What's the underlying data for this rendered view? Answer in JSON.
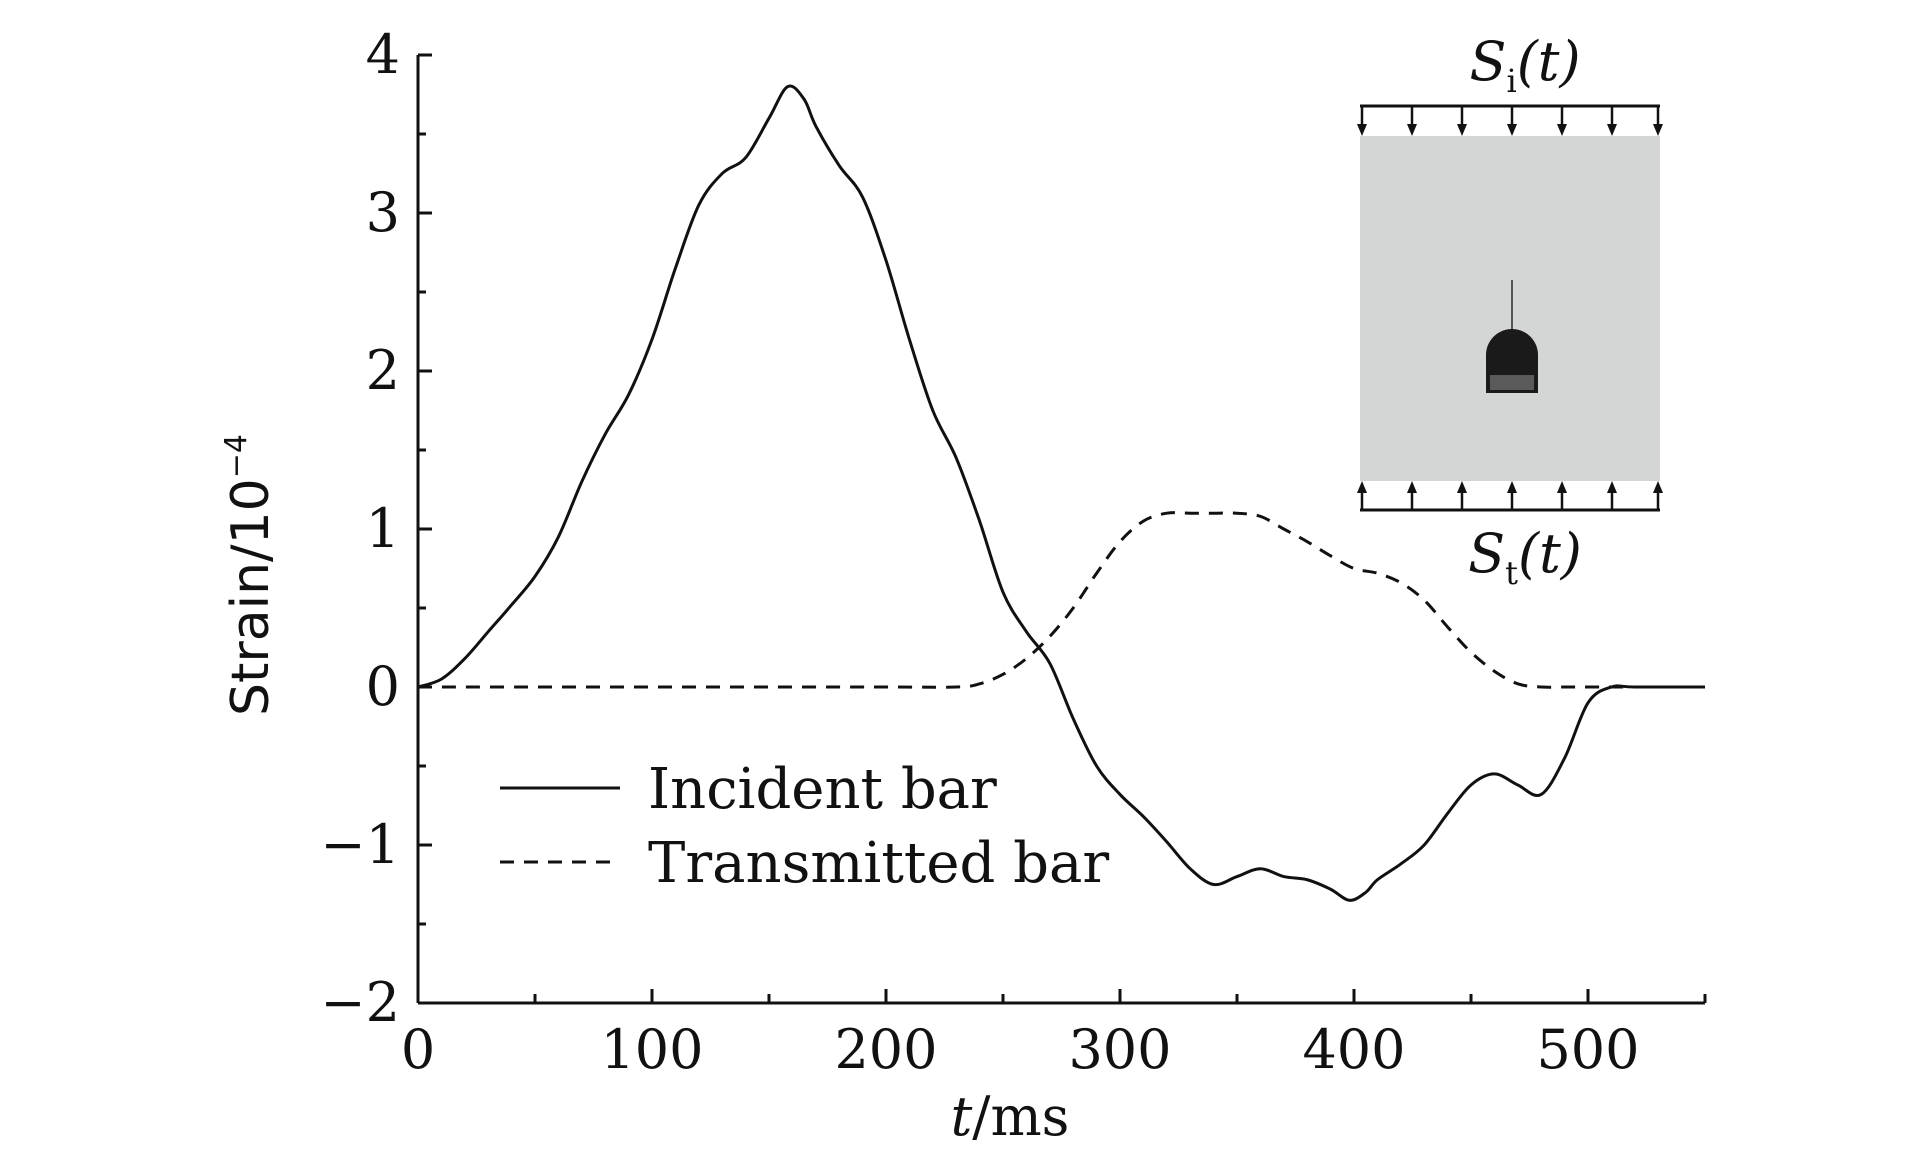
{
  "chart_data": {
    "type": "line",
    "xlabel_italic": "t",
    "xlabel_unit": "/ms",
    "ylabel_base": "Strain/10",
    "ylabel_exp": "−4",
    "xlim": [
      0,
      550
    ],
    "ylim": [
      -2,
      4
    ],
    "xticks": [
      0,
      100,
      200,
      300,
      400,
      500
    ],
    "xtick_labels": [
      "0",
      "100",
      "200",
      "300",
      "400",
      "500"
    ],
    "yticks": [
      -2,
      -1,
      0,
      1,
      2,
      3,
      4
    ],
    "ytick_labels": [
      "−2",
      "−1",
      "0",
      "1",
      "2",
      "3",
      "4"
    ],
    "grid": false,
    "legend_position": "lower-left",
    "series": [
      {
        "name": "Incident bar",
        "style": "solid",
        "color": "#111111",
        "x": [
          0,
          10,
          20,
          30,
          40,
          50,
          60,
          70,
          80,
          90,
          100,
          110,
          120,
          130,
          140,
          150,
          158,
          165,
          170,
          180,
          190,
          200,
          210,
          220,
          230,
          240,
          250,
          260,
          270,
          280,
          290,
          300,
          310,
          320,
          330,
          340,
          350,
          360,
          370,
          380,
          390,
          398,
          405,
          410,
          420,
          430,
          440,
          450,
          460,
          470,
          480,
          490,
          500,
          510,
          520,
          550
        ],
        "y": [
          0,
          0.05,
          0.18,
          0.35,
          0.52,
          0.7,
          0.95,
          1.3,
          1.6,
          1.85,
          2.2,
          2.65,
          3.05,
          3.25,
          3.35,
          3.6,
          3.8,
          3.72,
          3.55,
          3.3,
          3.1,
          2.7,
          2.2,
          1.75,
          1.45,
          1.05,
          0.6,
          0.35,
          0.15,
          -0.2,
          -0.5,
          -0.68,
          -0.82,
          -0.98,
          -1.15,
          -1.25,
          -1.2,
          -1.15,
          -1.2,
          -1.22,
          -1.28,
          -1.35,
          -1.3,
          -1.22,
          -1.12,
          -1.0,
          -0.8,
          -0.62,
          -0.55,
          -0.62,
          -0.68,
          -0.45,
          -0.1,
          0,
          0,
          0
        ]
      },
      {
        "name": "Transmitted bar",
        "style": "dashed",
        "color": "#111111",
        "x": [
          0,
          50,
          100,
          150,
          200,
          230,
          240,
          250,
          260,
          270,
          280,
          290,
          300,
          310,
          320,
          330,
          340,
          350,
          360,
          370,
          380,
          390,
          400,
          410,
          420,
          430,
          440,
          450,
          460,
          470,
          480,
          490,
          500,
          550
        ],
        "y": [
          0,
          0,
          0,
          0,
          0,
          0,
          0.02,
          0.08,
          0.18,
          0.32,
          0.5,
          0.72,
          0.92,
          1.05,
          1.1,
          1.1,
          1.1,
          1.1,
          1.08,
          1.0,
          0.92,
          0.83,
          0.75,
          0.72,
          0.66,
          0.55,
          0.38,
          0.22,
          0.1,
          0.02,
          0,
          0,
          0,
          0
        ]
      }
    ]
  },
  "inset": {
    "top_label_base": "S",
    "top_label_sub": "i",
    "top_label_arg": "(t)",
    "bottom_label_base": "S",
    "bottom_label_sub": "t",
    "bottom_label_arg": "(t)",
    "plate_color": "#d4d6d6"
  }
}
